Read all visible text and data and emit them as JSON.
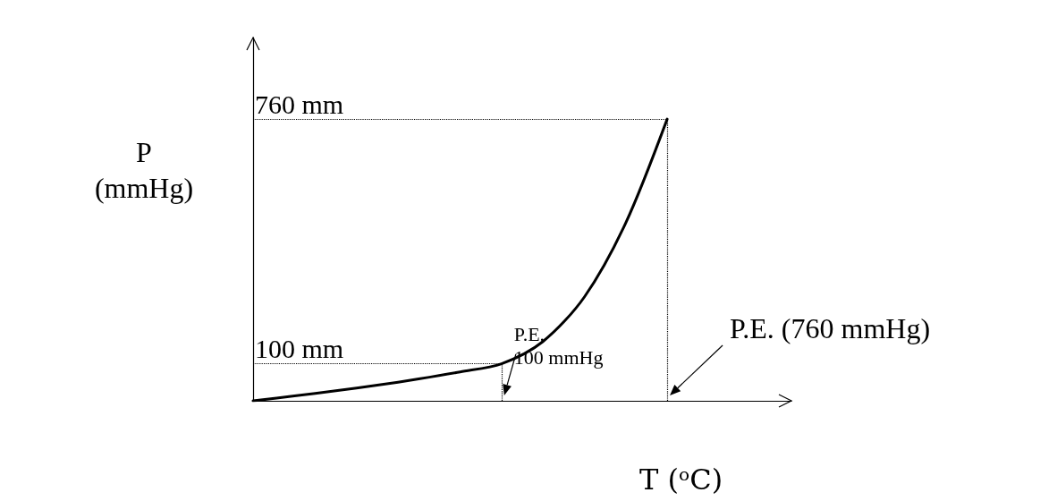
{
  "chart_data": {
    "type": "line",
    "xlabel": "T (ᵒC)",
    "ylabel": "P\n(mmHg)",
    "categories": [
      null,
      null,
      null,
      null,
      null,
      null,
      null,
      null,
      null,
      null,
      null,
      null,
      null,
      null
    ],
    "series": [
      {
        "color": "#000000",
        "values": [
          0,
          13,
          27,
          42,
          59,
          78,
          100,
          160,
          280,
          480,
          760,
          null,
          null,
          null
        ]
      }
    ],
    "ylim": [
      0,
      980
    ],
    "grid": false,
    "marker": "none",
    "line_style": "solid",
    "ref_lines": [
      {
        "axis": "y",
        "value": 100,
        "label": "100 mm",
        "line_style": "dotted"
      },
      {
        "axis": "y",
        "value": 760,
        "label": "760 mm",
        "line_style": "dotted"
      }
    ],
    "annotations": [
      "P.E.\n100 mmHg",
      "P.E. (760 mmHg)"
    ]
  }
}
